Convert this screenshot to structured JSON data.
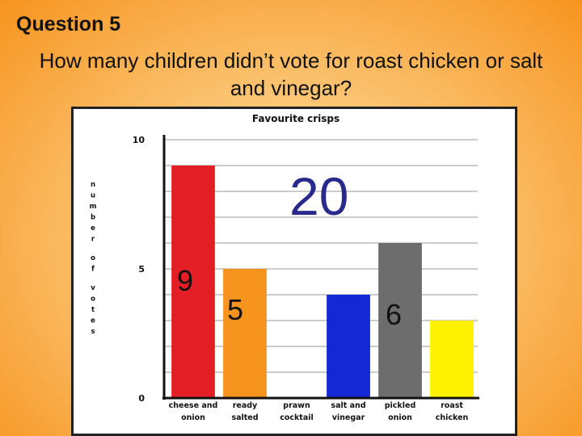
{
  "slide": {
    "heading": "Question 5",
    "question": "How many children didn’t vote for roast chicken or salt and vinegar?"
  },
  "chart_data": {
    "type": "bar",
    "title": "Favourite crisps",
    "ylabel": "number of votes",
    "xlabel": "",
    "ylim": [
      0,
      10
    ],
    "yticks": [
      "0",
      "5",
      "10"
    ],
    "grid": true,
    "categories": [
      [
        "cheese and",
        "onion"
      ],
      [
        "ready",
        "salted"
      ],
      [
        "prawn",
        "cocktail"
      ],
      [
        "salt and",
        "vinegar"
      ],
      [
        "pickled",
        "onion"
      ],
      [
        "roast",
        "chicken"
      ]
    ],
    "values": [
      9,
      5,
      0,
      4,
      6,
      3
    ],
    "colors": [
      "#e31e24",
      "#f7941d",
      "#ffffff",
      "#1428d6",
      "#6d6d6d",
      "#fff200"
    ]
  },
  "annotations": {
    "total": "20",
    "n1": "9",
    "n2": "5",
    "n3": "6"
  },
  "colors": {
    "annotation_total": "#2a2a8c"
  }
}
